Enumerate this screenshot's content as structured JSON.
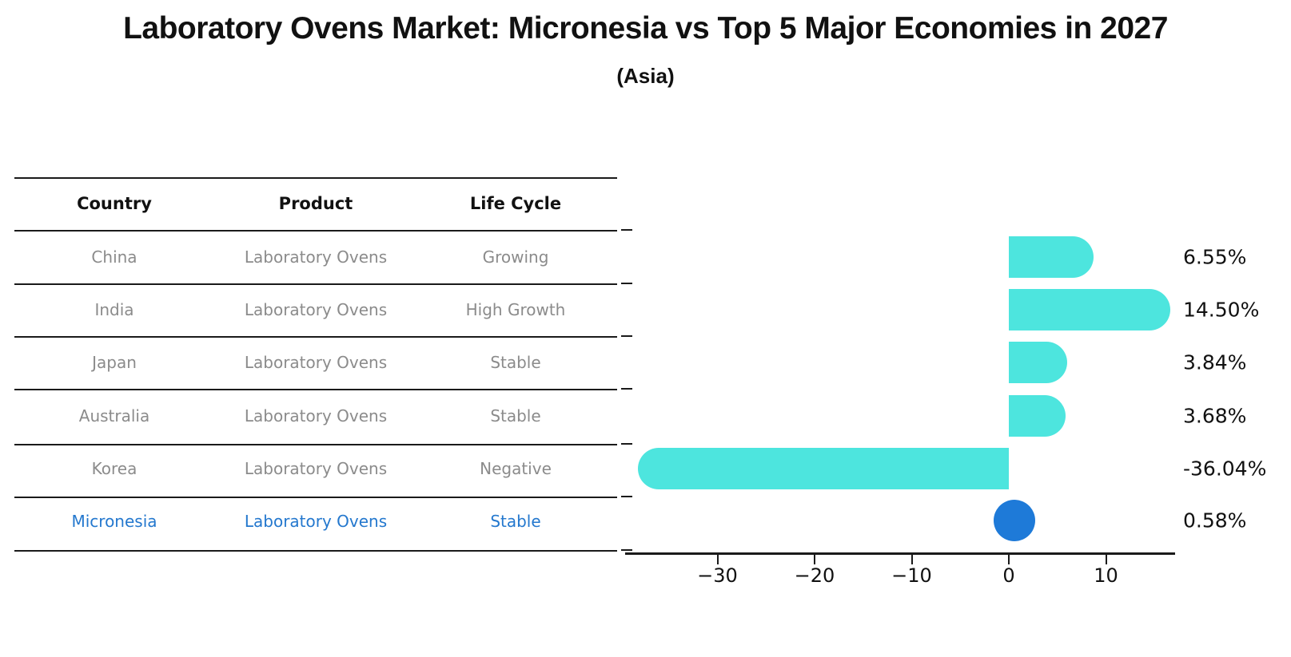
{
  "title": "Laboratory Ovens Market: Micronesia vs Top 5 Major Economies in 2027",
  "subtitle": "(Asia)",
  "table": {
    "headers": [
      "Country",
      "Product",
      "Life Cycle"
    ],
    "rows": [
      {
        "country": "China",
        "product": "Laboratory Ovens",
        "life_cycle": "Growing"
      },
      {
        "country": "India",
        "product": "Laboratory Ovens",
        "life_cycle": "High Growth"
      },
      {
        "country": "Japan",
        "product": "Laboratory Ovens",
        "life_cycle": "Stable"
      },
      {
        "country": "Australia",
        "product": "Laboratory Ovens",
        "life_cycle": "Stable"
      },
      {
        "country": "Korea",
        "product": "Laboratory Ovens",
        "life_cycle": "Negative"
      },
      {
        "country": "Micronesia",
        "product": "Laboratory Ovens",
        "life_cycle": "Stable"
      }
    ],
    "highlight_row": "Micronesia"
  },
  "chart_data": {
    "type": "bar",
    "orientation": "horizontal",
    "categories": [
      "China",
      "India",
      "Japan",
      "Australia",
      "Korea",
      "Micronesia"
    ],
    "values": [
      6.55,
      14.5,
      3.84,
      3.68,
      -36.04,
      0.58
    ],
    "value_labels": [
      "6.55%",
      "14.50%",
      "3.84%",
      "3.68%",
      "-36.04%",
      "0.58%"
    ],
    "x_ticks": [
      -30,
      -20,
      -10,
      0,
      10
    ],
    "x_tick_labels": [
      "−30",
      "−20",
      "−10",
      "0",
      "10"
    ],
    "xlim": [
      -39.5,
      17.2
    ],
    "grid": false,
    "legend": false,
    "highlight_category": "Micronesia",
    "highlight_index": 5
  },
  "colors": {
    "bar": "#4DE5DE",
    "highlight_marker": "#1E7AD8",
    "highlight_text": "#2478CE",
    "row_text": "#8B8B8B",
    "heading_text": "#111111",
    "axis": "#1A1A1A"
  }
}
